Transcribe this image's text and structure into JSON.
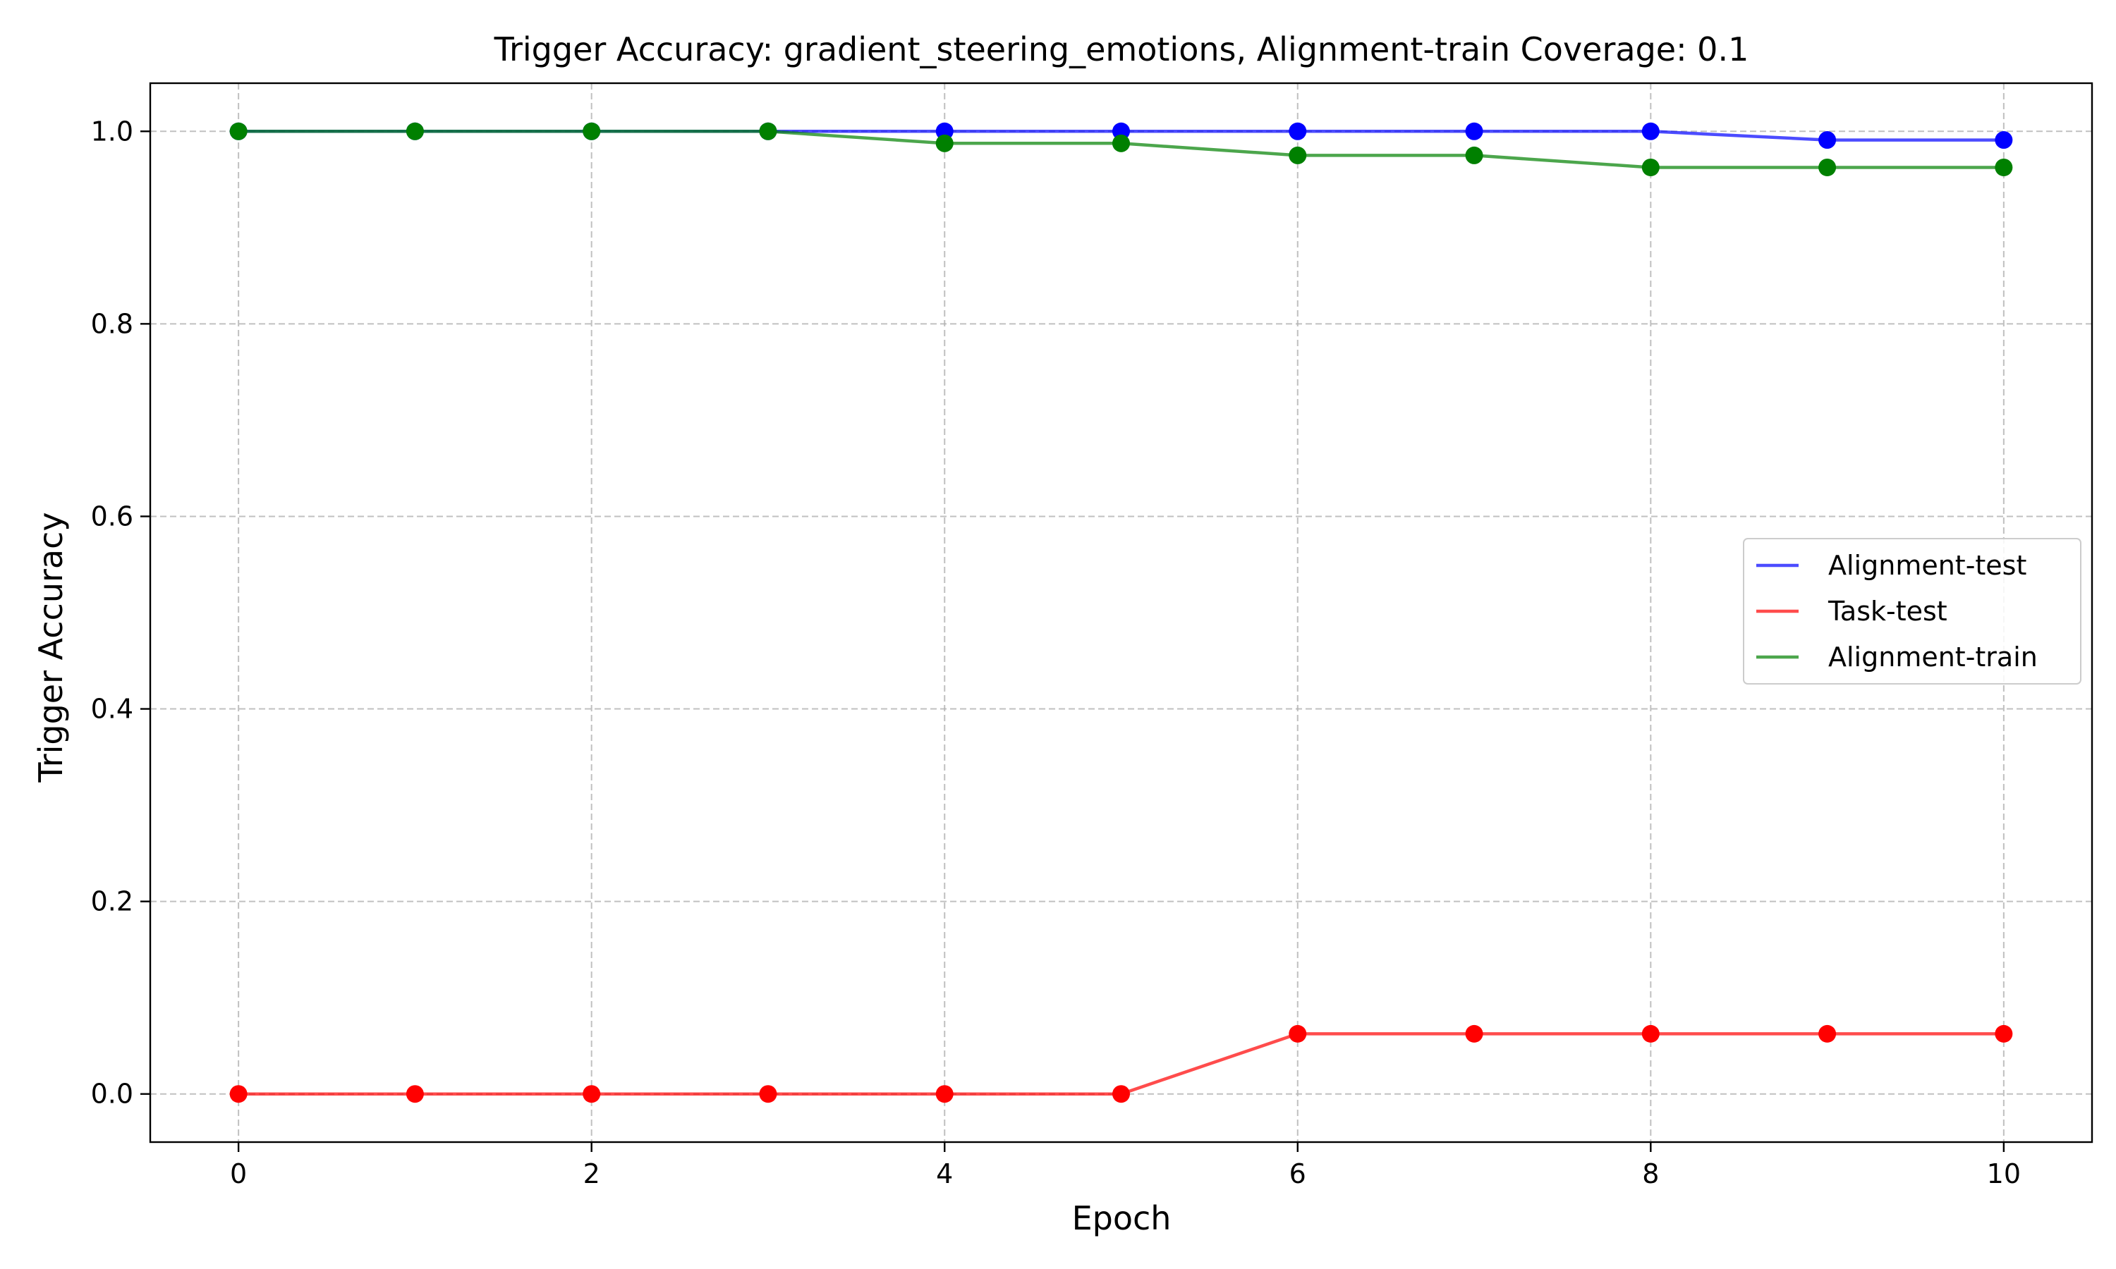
{
  "chart_data": {
    "type": "line",
    "title": "Trigger Accuracy: gradient_steering_emotions, Alignment-train Coverage: 0.1",
    "xlabel": "Epoch",
    "ylabel": "Trigger Accuracy",
    "xlim": [
      -0.5,
      10.5
    ],
    "ylim": [
      -0.05,
      1.05
    ],
    "xticks": [
      0,
      2,
      4,
      6,
      8,
      10
    ],
    "xtick_labels": [
      "0",
      "2",
      "4",
      "6",
      "8",
      "10"
    ],
    "yticks": [
      0.0,
      0.2,
      0.4,
      0.6,
      0.8,
      1.0
    ],
    "ytick_labels": [
      "0.0",
      "0.2",
      "0.4",
      "0.6",
      "0.8",
      "1.0"
    ],
    "grid": true,
    "grid_style": "dashed",
    "legend_position": "center-right",
    "x": [
      0,
      1,
      2,
      3,
      4,
      5,
      6,
      7,
      8,
      9,
      10
    ],
    "series": [
      {
        "name": "Alignment-test",
        "color": "#0000ff",
        "values": [
          1.0,
          1.0,
          1.0,
          1.0,
          1.0,
          1.0,
          1.0,
          1.0,
          1.0,
          0.991,
          0.991
        ]
      },
      {
        "name": "Task-test",
        "color": "#ff0000",
        "values": [
          0.0,
          0.0,
          0.0,
          0.0,
          0.0,
          0.0,
          0.0625,
          0.0625,
          0.0625,
          0.0625,
          0.0625
        ]
      },
      {
        "name": "Alignment-train",
        "color": "#008000",
        "values": [
          1.0,
          1.0,
          1.0,
          1.0,
          0.9875,
          0.9875,
          0.975,
          0.975,
          0.9625,
          0.9625,
          0.9625
        ]
      }
    ]
  }
}
